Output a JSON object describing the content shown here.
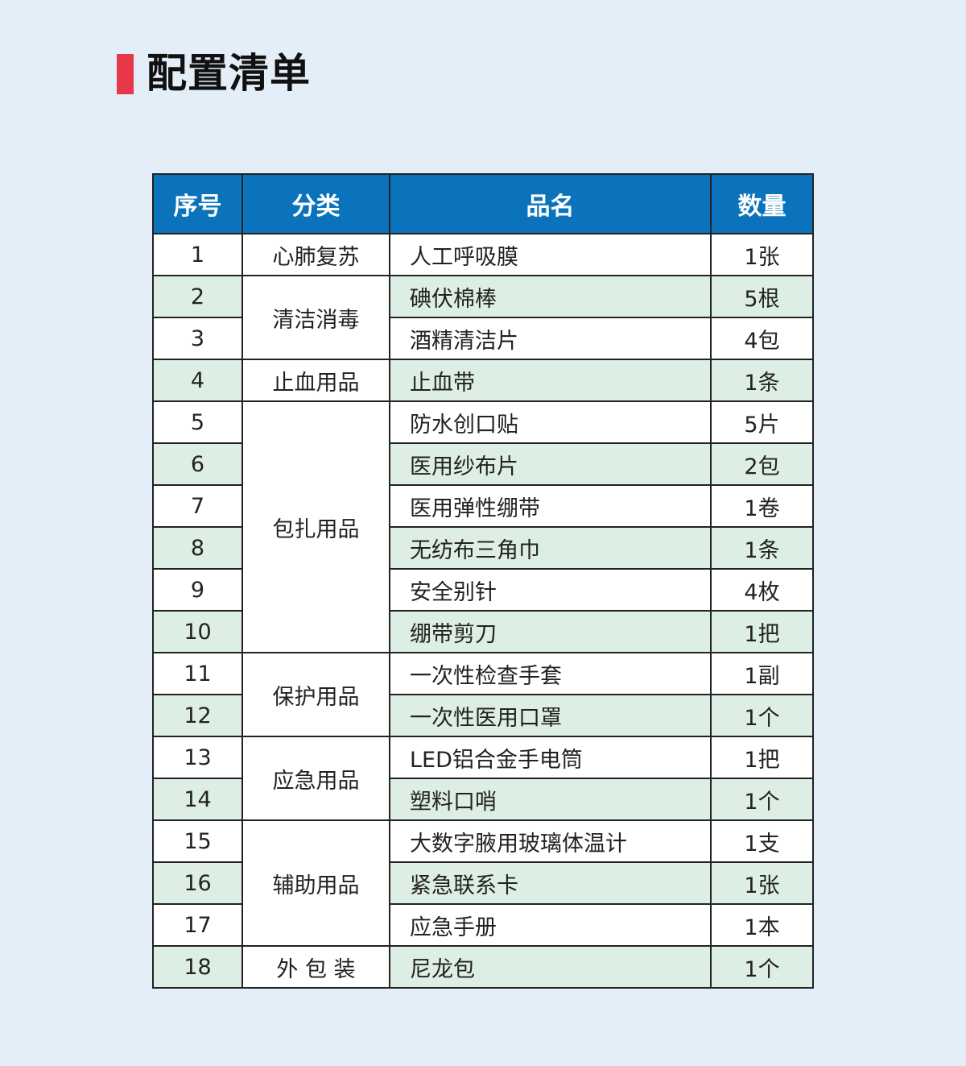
{
  "title": "配置清单",
  "colors": {
    "accent": "#e8364a",
    "header": "#0b73bb",
    "row_alt": "#ddeee4",
    "background": "#e4eef8"
  },
  "table": {
    "headers": [
      "序号",
      "分类",
      "品名",
      "数量"
    ],
    "groups": [
      {
        "category": "心肺复苏",
        "rows": [
          {
            "no": "1",
            "name": "人工呼吸膜",
            "qty": "1张"
          }
        ]
      },
      {
        "category": "清洁消毒",
        "rows": [
          {
            "no": "2",
            "name": "碘伏棉棒",
            "qty": "5根"
          },
          {
            "no": "3",
            "name": "酒精清洁片",
            "qty": "4包"
          }
        ]
      },
      {
        "category": "止血用品",
        "rows": [
          {
            "no": "4",
            "name": "止血带",
            "qty": "1条"
          }
        ]
      },
      {
        "category": "包扎用品",
        "rows": [
          {
            "no": "5",
            "name": "防水创口贴",
            "qty": "5片"
          },
          {
            "no": "6",
            "name": "医用纱布片",
            "qty": "2包"
          },
          {
            "no": "7",
            "name": "医用弹性绷带",
            "qty": "1卷"
          },
          {
            "no": "8",
            "name": "无纺布三角巾",
            "qty": "1条"
          },
          {
            "no": "9",
            "name": "安全别针",
            "qty": "4枚"
          },
          {
            "no": "10",
            "name": "绷带剪刀",
            "qty": "1把"
          }
        ]
      },
      {
        "category": "保护用品",
        "rows": [
          {
            "no": "11",
            "name": "一次性检查手套",
            "qty": "1副"
          },
          {
            "no": "12",
            "name": "一次性医用口罩",
            "qty": "1个"
          }
        ]
      },
      {
        "category": "应急用品",
        "rows": [
          {
            "no": "13",
            "name": "LED铝合金手电筒",
            "qty": "1把"
          },
          {
            "no": "14",
            "name": "塑料口哨",
            "qty": "1个"
          }
        ]
      },
      {
        "category": "辅助用品",
        "rows": [
          {
            "no": "15",
            "name": "大数字腋用玻璃体温计",
            "qty": "1支"
          },
          {
            "no": "16",
            "name": "紧急联系卡",
            "qty": "1张"
          },
          {
            "no": "17",
            "name": "应急手册",
            "qty": "1本"
          }
        ]
      },
      {
        "category": "外 包 装",
        "rows": [
          {
            "no": "18",
            "name": "尼龙包",
            "qty": "1个"
          }
        ]
      }
    ]
  }
}
